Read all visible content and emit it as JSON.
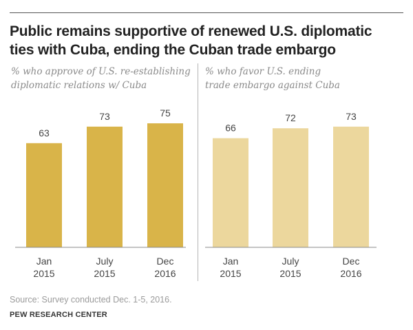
{
  "title": "Public remains supportive of renewed U.S. diplomatic ties with Cuba, ending the Cuban trade embargo",
  "source": "Source: Survey conducted Dec. 1-5, 2016.",
  "brand": "PEW RESEARCH CENTER",
  "chart_data": [
    {
      "type": "bar",
      "subtitle_lines": [
        "% who approve of U.S. re-establishing",
        "diplomatic relations w/ Cuba"
      ],
      "categories": [
        [
          "Jan",
          "2015"
        ],
        [
          "July",
          "2015"
        ],
        [
          "Dec",
          "2016"
        ]
      ],
      "values": [
        63,
        73,
        75
      ],
      "color": "#d9b449",
      "ylim": [
        0,
        100
      ],
      "grid": false
    },
    {
      "type": "bar",
      "subtitle_lines": [
        "% who favor U.S. ending",
        "trade embargo against Cuba"
      ],
      "categories": [
        [
          "Jan",
          "2015"
        ],
        [
          "July",
          "2015"
        ],
        [
          "Dec",
          "2016"
        ]
      ],
      "values": [
        66,
        72,
        73
      ],
      "color": "#ecd79d",
      "ylim": [
        0,
        100
      ],
      "grid": false
    }
  ]
}
